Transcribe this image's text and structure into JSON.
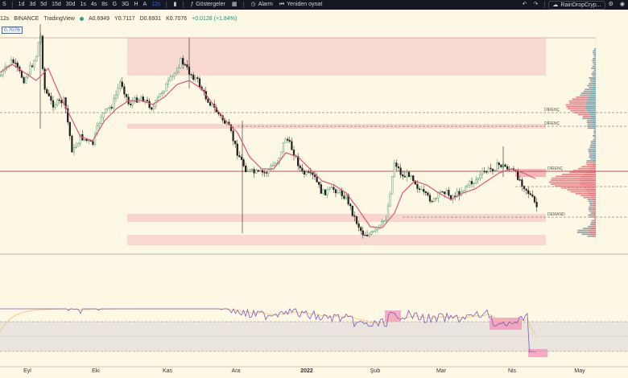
{
  "toolbar": {
    "symbol_fragment": "S",
    "timeframes": [
      "1d",
      "3d",
      "5d",
      "15d",
      "30d",
      "1s",
      "4s",
      "8s",
      "G",
      "3G",
      "H",
      "A",
      "12s"
    ],
    "active_timeframe": "12s",
    "indicators_label": "Göstergeler",
    "alarm_label": "Alarm",
    "replay_label": "Yeniden oynat",
    "account_label": "RainDropCryp..."
  },
  "legend": {
    "interval": "12s",
    "exchange": "BINANCE",
    "source": "TradingView",
    "open": "A0.6949",
    "high": "Y0.7117",
    "low": "D0.6931",
    "close": "K0.7076",
    "change": "+0.0128 (+1.84%)"
  },
  "price_badge": "0.7076",
  "zone_labels": {
    "resistance_1": "DİRENÇ",
    "resistance_2": "DİRENÇ",
    "resistance_3": "DİRENÇ",
    "demand": "DEMAND"
  },
  "x_axis": {
    "labels": [
      "Eyl",
      "Eki",
      "Kas",
      "Ara",
      "2022",
      "Şub",
      "Mar",
      "Nis",
      "May"
    ]
  },
  "colors": {
    "toolbar_bg": "#131722",
    "chart_bg": "#fdf8e4",
    "zone_fill": "#f4b9b9",
    "ma_line": "#e0557a",
    "rsi_line": "#7e57c2",
    "rsi_signal": "#f0c36b",
    "accent": "#2962ff",
    "volume_profile": "#9598a1"
  },
  "icons": {
    "indicators": "fx-icon",
    "alarm": "alarm-clock-icon",
    "replay": "replay-icon",
    "undo": "undo-icon",
    "redo": "redo-icon",
    "settings": "gear-icon",
    "camera": "camera-icon",
    "account": "user-icon"
  }
}
